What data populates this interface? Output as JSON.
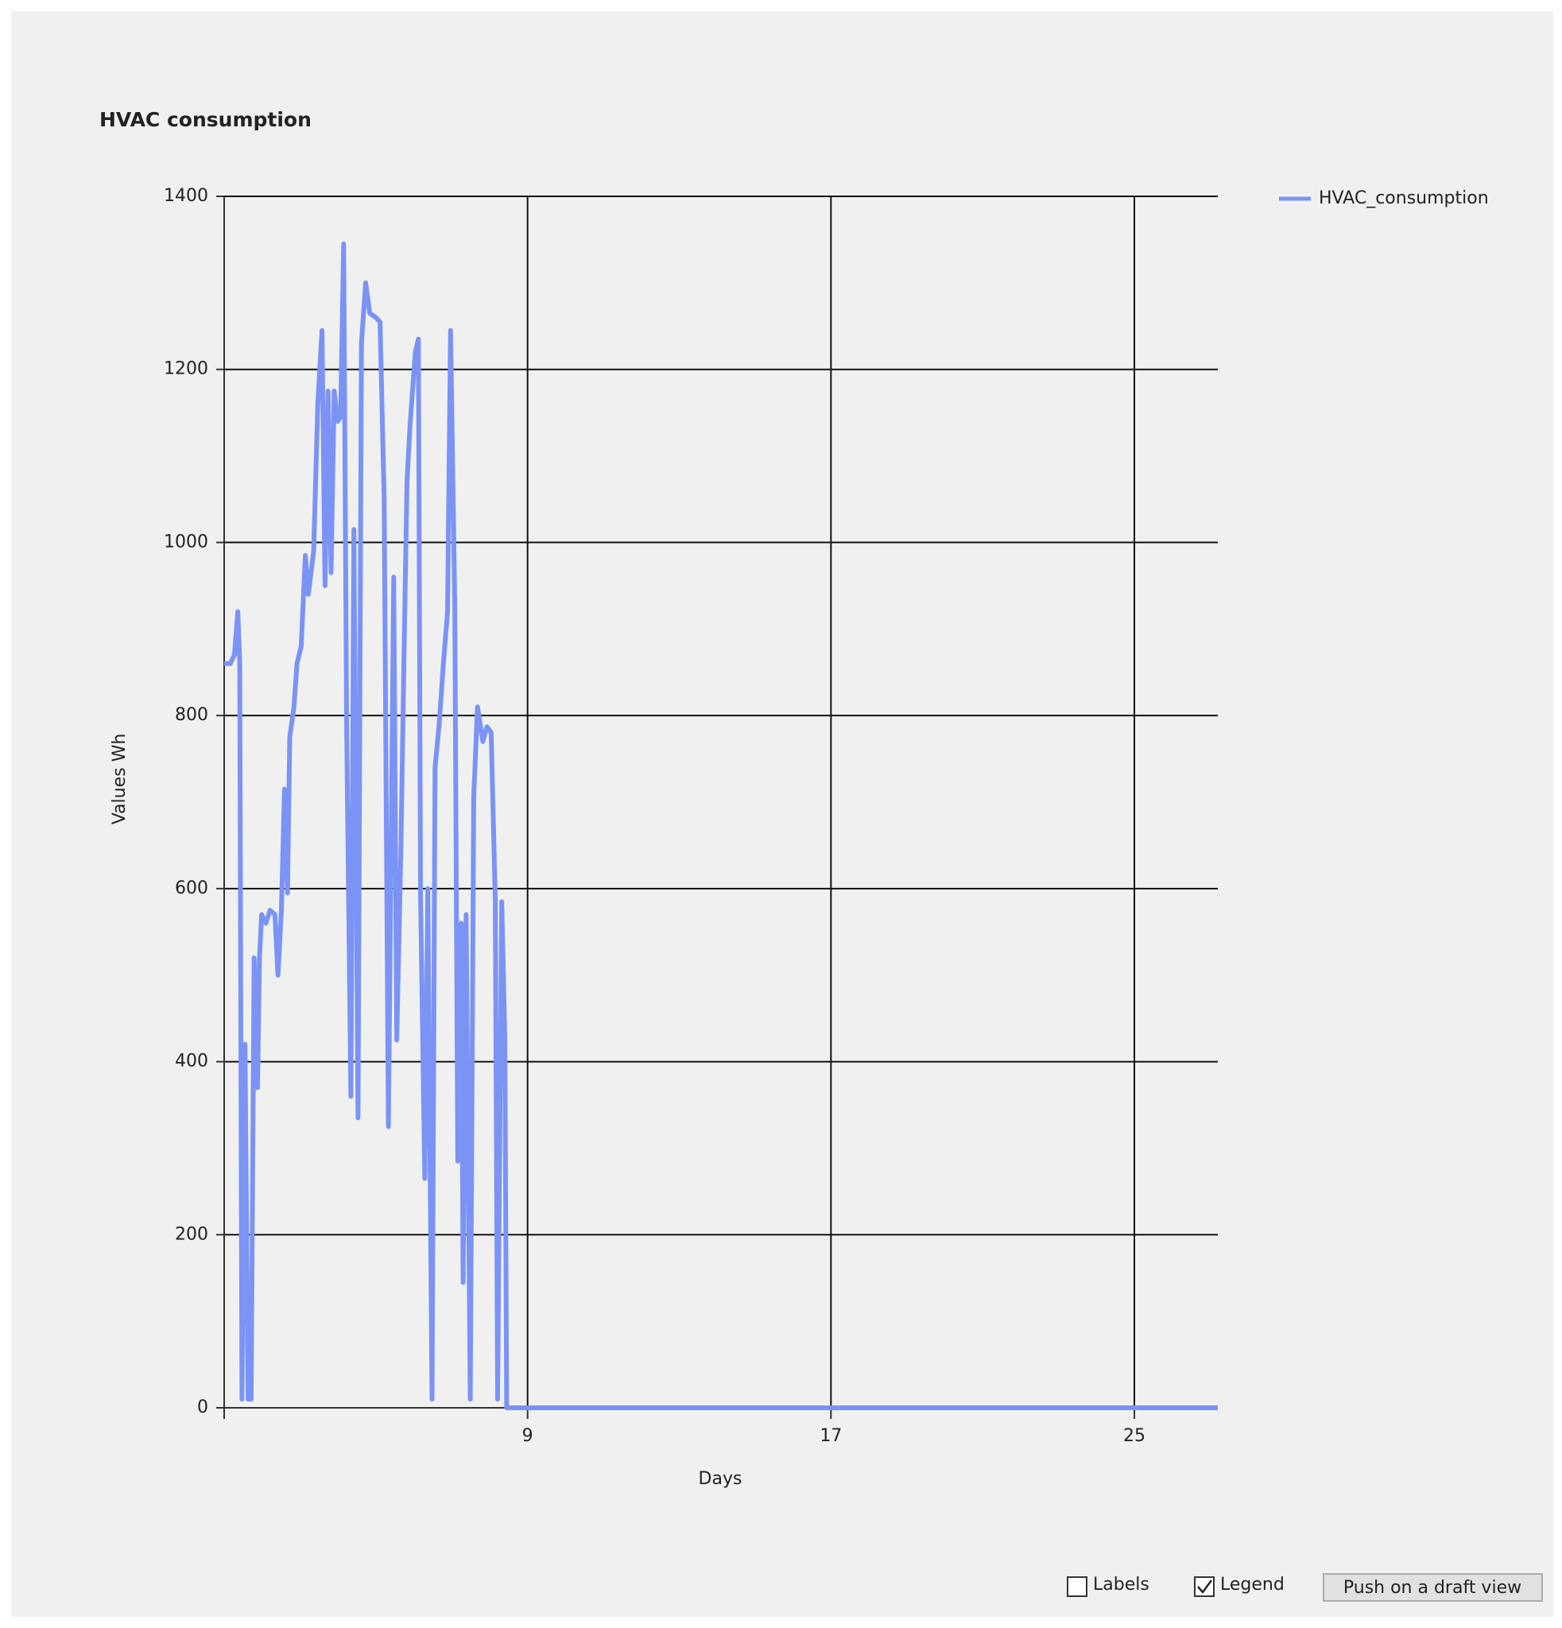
{
  "chart_data": {
    "type": "line",
    "title": "HVAC consumption",
    "x_label": "Days",
    "y_label": "Values Wh",
    "x": [
      1.0,
      1.16,
      1.27,
      1.36,
      1.41,
      1.47,
      1.55,
      1.63,
      1.71,
      1.79,
      1.88,
      1.93,
      1.99,
      2.1,
      2.21,
      2.34,
      2.42,
      2.51,
      2.59,
      2.67,
      2.73,
      2.84,
      2.92,
      3.03,
      3.14,
      3.22,
      3.36,
      3.47,
      3.58,
      3.66,
      3.74,
      3.82,
      3.9,
      3.99,
      4.07,
      4.15,
      4.23,
      4.34,
      4.42,
      4.53,
      4.62,
      4.73,
      4.84,
      5.0,
      5.11,
      5.22,
      5.33,
      5.47,
      5.55,
      5.66,
      5.74,
      5.82,
      5.9,
      6.04,
      6.12,
      6.18,
      6.29,
      6.37,
      6.48,
      6.56,
      6.67,
      6.78,
      6.89,
      6.97,
      7.08,
      7.16,
      7.25,
      7.3,
      7.38,
      7.49,
      7.58,
      7.68,
      7.82,
      7.93,
      8.04,
      8.15,
      8.21,
      8.32,
      8.4,
      8.45,
      9,
      17,
      25,
      27.2
    ],
    "series": [
      {
        "name": "HVAC_consumption",
        "color": "#7b93f5",
        "values": [
          860,
          860,
          870,
          920,
          860,
          10,
          420,
          10,
          10,
          520,
          370,
          520,
          570,
          560,
          575,
          570,
          500,
          575,
          715,
          595,
          775,
          810,
          860,
          880,
          985,
          940,
          990,
          1160,
          1245,
          950,
          1175,
          965,
          1175,
          1140,
          1145,
          1345,
          787,
          360,
          1015,
          335,
          1230,
          1300,
          1265,
          1260,
          1255,
          1050,
          325,
          960,
          425,
          645,
          860,
          1070,
          1135,
          1220,
          1235,
          590,
          265,
          600,
          10,
          740,
          790,
          860,
          920,
          1245,
          930,
          285,
          560,
          145,
          570,
          10,
          705,
          810,
          770,
          787,
          780,
          585,
          10,
          585,
          425,
          0,
          0,
          0,
          0,
          0
        ]
      }
    ],
    "xlim": [
      1,
      27.2
    ],
    "xticks": [
      9,
      17,
      25
    ],
    "ylim": [
      0,
      1400
    ],
    "yticks": [
      0,
      200,
      400,
      600,
      800,
      1000,
      1200,
      1400
    ],
    "grid": true,
    "legend": "top-right"
  },
  "controls": {
    "labels": {
      "text": "Labels",
      "checked": false
    },
    "legend": {
      "text": "Legend",
      "checked": true
    },
    "button": "Push on a draft view"
  }
}
